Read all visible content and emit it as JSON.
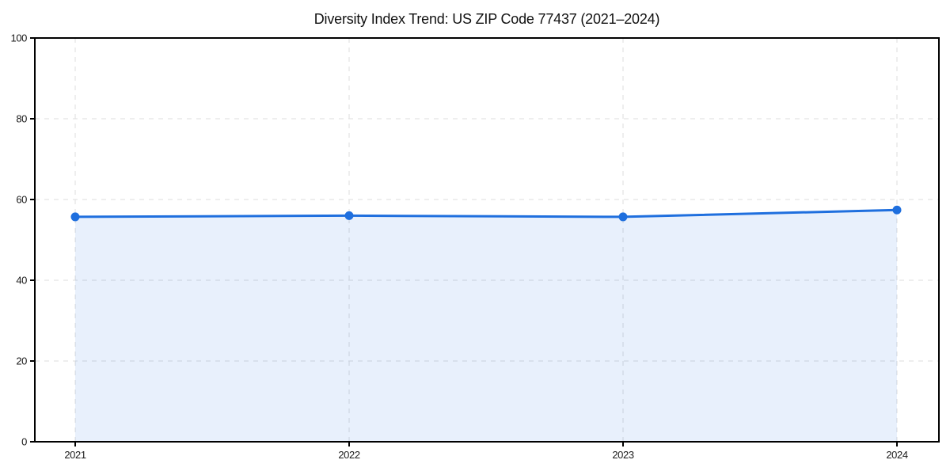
{
  "page": {
    "background": "#ffffff"
  },
  "chart_data": {
    "type": "line",
    "title": "Diversity Index Trend: US ZIP Code 77437 (2021–2024)",
    "x": [
      2021,
      2022,
      2023,
      2024
    ],
    "values": [
      55.7,
      56.0,
      55.7,
      57.4
    ],
    "xlabel": "",
    "ylabel": "",
    "ylim": [
      0,
      100
    ],
    "yticks": [
      0,
      20,
      40,
      60,
      80,
      100
    ],
    "xticks": [
      "2021",
      "2022",
      "2023",
      "2024"
    ],
    "grid": "dashed",
    "grid_axes": "both",
    "legend_position": "none",
    "area_fill": true,
    "marker": "circle",
    "colors": {
      "line": "#1f6fde",
      "fill": "#1f6fde",
      "grid": "#dcdcdc",
      "axis": "#000000",
      "text": "#1a1a1a"
    },
    "fill_opacity": 0.1
  }
}
